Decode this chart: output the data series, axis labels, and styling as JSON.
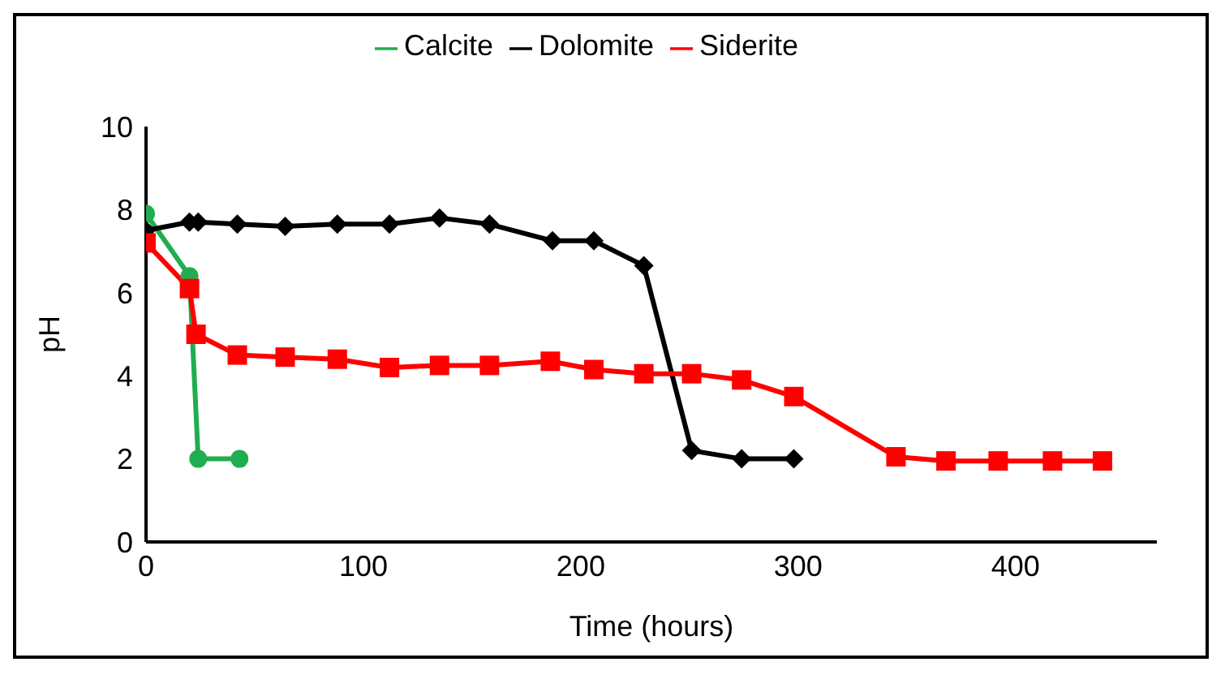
{
  "chart_data": {
    "type": "line",
    "xlabel": "Time (hours)",
    "ylabel": "pH",
    "xlim": [
      0,
      465
    ],
    "xticks": [
      0,
      100,
      200,
      300,
      400
    ],
    "ylim": [
      0,
      10
    ],
    "yticks": [
      0,
      2,
      4,
      6,
      8,
      10
    ],
    "grid": false,
    "legend": "top",
    "marker": "circle",
    "line_style": "solid",
    "series": [
      {
        "name": "Calcite",
        "color": "#1fae4f",
        "marker": "circle",
        "x": [
          0,
          20,
          24,
          43
        ],
        "values": [
          7.9,
          6.4,
          2.0,
          2.0
        ]
      },
      {
        "name": "Dolomite",
        "color": "#000000",
        "marker": "diamond",
        "x": [
          0,
          20,
          24,
          42,
          64,
          88,
          112,
          135,
          158,
          187,
          206,
          229,
          251,
          274,
          298
        ],
        "values": [
          7.5,
          7.7,
          7.7,
          7.65,
          7.6,
          7.65,
          7.65,
          7.8,
          7.65,
          7.25,
          7.25,
          6.65,
          2.2,
          2.0,
          2.0
        ]
      },
      {
        "name": "Siderite",
        "color": "#ff0000",
        "marker": "square",
        "x": [
          0,
          20,
          23,
          42,
          64,
          88,
          112,
          135,
          158,
          186,
          206,
          229,
          251,
          274,
          298,
          345,
          368,
          392,
          417,
          440
        ],
        "values": [
          7.2,
          6.1,
          5.0,
          4.5,
          4.45,
          4.4,
          4.2,
          4.25,
          4.25,
          4.35,
          4.15,
          4.05,
          4.05,
          3.9,
          3.5,
          2.05,
          1.95,
          1.95,
          1.95,
          1.95
        ]
      }
    ]
  }
}
